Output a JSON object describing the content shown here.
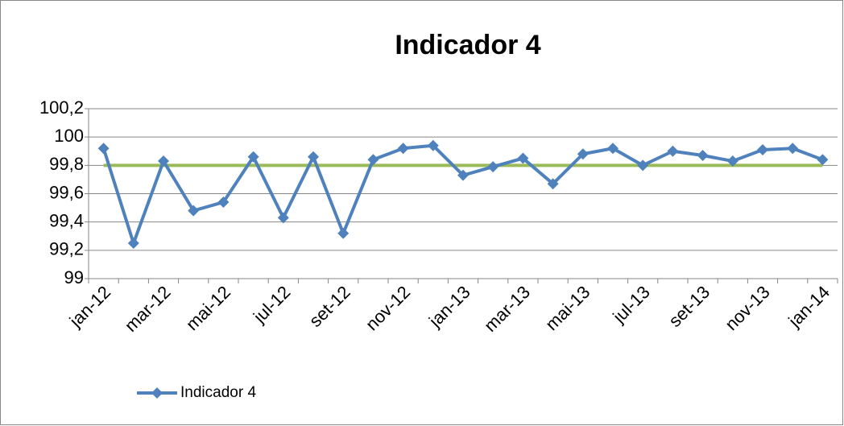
{
  "chart_data": {
    "type": "line",
    "title": "Indicador 4",
    "categories": [
      "jan-12",
      null,
      "mar-12",
      null,
      "mai-12",
      null,
      "jul-12",
      null,
      "set-12",
      null,
      "nov-12",
      null,
      "jan-13",
      null,
      "mar-13",
      null,
      "mai-13",
      null,
      "jul-13",
      null,
      "set-13",
      null,
      "nov-13",
      null,
      "jan-14"
    ],
    "series": [
      {
        "name": "Indicador 4",
        "color": "#4f81bd",
        "values": [
          99.92,
          99.25,
          99.83,
          99.48,
          99.54,
          99.86,
          99.43,
          99.86,
          99.32,
          99.84,
          99.92,
          99.94,
          99.73,
          99.79,
          99.85,
          99.67,
          99.88,
          99.92,
          99.8,
          99.9,
          99.87,
          99.83,
          99.91,
          99.92,
          99.84
        ]
      }
    ],
    "threshold": {
      "value": 99.8,
      "color": "#9bbb59"
    },
    "ylim": [
      99,
      100.2
    ],
    "yticks": [
      99,
      {
        "value": 99.2,
        "label": "99,2"
      },
      {
        "value": 99.4,
        "label": "99,4"
      },
      {
        "value": 99.6,
        "label": "99,6"
      },
      {
        "value": 99.8,
        "label": "99,8"
      },
      100,
      {
        "value": 100.2,
        "label": "100,2"
      }
    ],
    "grid": true,
    "legend": "bottom-left"
  }
}
